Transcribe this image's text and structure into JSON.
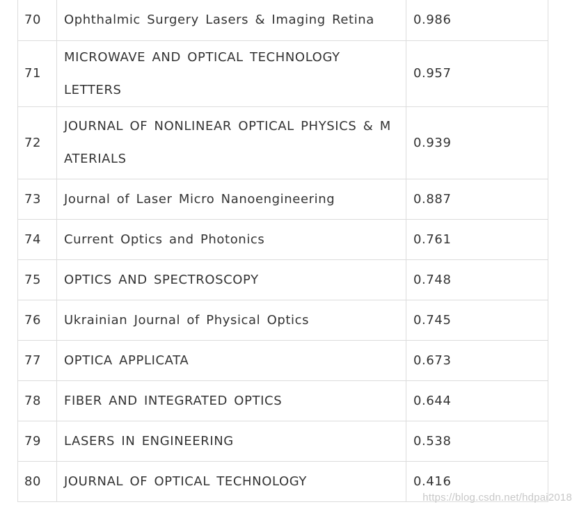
{
  "rows": [
    {
      "rank": "70",
      "journal": "Ophthalmic Surgery Lasers & Imaging Retina",
      "score": "0.986"
    },
    {
      "rank": "71",
      "journal": "MICROWAVE AND OPTICAL TECHNOLOGY LETTERS",
      "score": "0.957"
    },
    {
      "rank": "72",
      "journal": "JOURNAL OF NONLINEAR OPTICAL PHYSICS & M",
      "journal_cont": "ATERIALS",
      "score": "0.939"
    },
    {
      "rank": "73",
      "journal": "Journal of Laser Micro Nanoengineering",
      "score": "0.887"
    },
    {
      "rank": "74",
      "journal": "Current Optics and Photonics",
      "score": "0.761"
    },
    {
      "rank": "75",
      "journal": "OPTICS AND SPECTROSCOPY",
      "score": "0.748"
    },
    {
      "rank": "76",
      "journal": "Ukrainian Journal of Physical Optics",
      "score": "0.745"
    },
    {
      "rank": "77",
      "journal": "OPTICA APPLICATA",
      "score": "0.673"
    },
    {
      "rank": "78",
      "journal": "FIBER AND INTEGRATED OPTICS",
      "score": "0.644"
    },
    {
      "rank": "79",
      "journal": "LASERS IN ENGINEERING",
      "score": "0.538"
    },
    {
      "rank": "80",
      "journal": "JOURNAL OF OPTICAL TECHNOLOGY",
      "score": "0.416"
    }
  ],
  "watermark": "https://blog.csdn.net/hdpai2018"
}
